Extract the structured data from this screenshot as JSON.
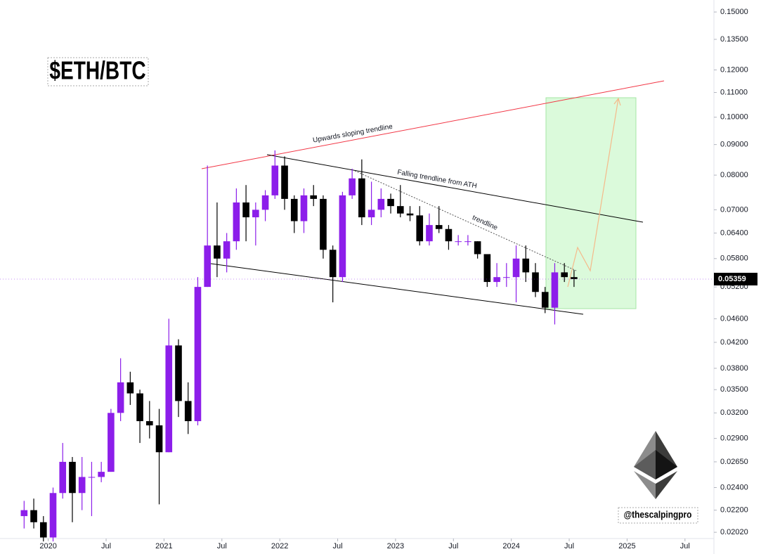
{
  "chart_data": {
    "type": "candlestick",
    "title": "$ETH/BTC",
    "watermark": "@thescalpingpro",
    "annotations": [
      "Upwards sloping trendline",
      "Falling trendline from ATH",
      "trendline"
    ],
    "up_color": "#8c1eea",
    "down_color": "#000000",
    "log_scale": true,
    "last_price": 0.05359,
    "x": [
      "2019-10",
      "2019-11",
      "2019-12",
      "2020-01",
      "2020-02",
      "2020-03",
      "2020-04",
      "2020-05",
      "2020-06",
      "2020-07",
      "2020-08",
      "2020-09",
      "2020-10",
      "2020-11",
      "2020-12",
      "2021-01",
      "2021-02",
      "2021-03",
      "2021-04",
      "2021-05",
      "2021-06",
      "2021-07",
      "2021-08",
      "2021-09",
      "2021-10",
      "2021-11",
      "2021-12",
      "2022-01",
      "2022-02",
      "2022-03",
      "2022-04",
      "2022-05",
      "2022-06",
      "2022-07",
      "2022-08",
      "2022-09",
      "2022-10",
      "2022-11",
      "2022-12",
      "2023-01",
      "2023-02",
      "2023-03",
      "2023-04",
      "2023-05",
      "2023-06",
      "2023-07",
      "2023-08",
      "2023-09",
      "2023-10",
      "2023-11",
      "2023-12",
      "2024-01",
      "2024-02",
      "2024-03",
      "2024-04",
      "2024-05",
      "2024-06",
      "2024-07"
    ],
    "open": [
      0.0215,
      0.022,
      0.021,
      0.0198,
      0.0235,
      0.0265,
      0.0235,
      0.025,
      0.025,
      0.0255,
      0.032,
      0.036,
      0.0345,
      0.031,
      0.0305,
      0.0275,
      0.0415,
      0.0335,
      0.031,
      0.052,
      0.061,
      0.058,
      0.062,
      0.072,
      0.068,
      0.07,
      0.074,
      0.083,
      0.073,
      0.067,
      0.074,
      0.073,
      0.06,
      0.054,
      0.074,
      0.079,
      0.068,
      0.07,
      0.073,
      0.071,
      0.069,
      0.0685,
      0.062,
      0.066,
      0.065,
      0.062,
      0.062,
      0.062,
      0.059,
      0.053,
      0.054,
      0.054,
      0.058,
      0.055,
      0.051,
      0.048,
      0.055,
      0.054
    ],
    "high": [
      0.0228,
      0.023,
      0.0215,
      0.024,
      0.0285,
      0.027,
      0.027,
      0.0265,
      0.0265,
      0.0325,
      0.0395,
      0.0375,
      0.035,
      0.0335,
      0.0325,
      0.046,
      0.0425,
      0.036,
      0.054,
      0.083,
      0.072,
      0.064,
      0.076,
      0.077,
      0.072,
      0.0755,
      0.088,
      0.086,
      0.074,
      0.076,
      0.077,
      0.074,
      0.061,
      0.075,
      0.082,
      0.085,
      0.078,
      0.076,
      0.0745,
      0.077,
      0.071,
      0.071,
      0.069,
      0.071,
      0.066,
      0.0635,
      0.0635,
      0.062,
      0.059,
      0.057,
      0.057,
      0.061,
      0.061,
      0.057,
      0.052,
      0.057,
      0.057,
      0.0555
    ],
    "low": [
      0.0205,
      0.0205,
      0.0195,
      0.0195,
      0.023,
      0.021,
      0.022,
      0.0215,
      0.0245,
      0.0255,
      0.031,
      0.033,
      0.0285,
      0.029,
      0.0225,
      0.0275,
      0.0315,
      0.0295,
      0.0305,
      0.052,
      0.054,
      0.055,
      0.06,
      0.062,
      0.061,
      0.067,
      0.073,
      0.07,
      0.064,
      0.064,
      0.071,
      0.058,
      0.049,
      0.053,
      0.073,
      0.066,
      0.066,
      0.068,
      0.069,
      0.068,
      0.067,
      0.061,
      0.061,
      0.064,
      0.06,
      0.061,
      0.061,
      0.058,
      0.052,
      0.052,
      0.052,
      0.049,
      0.053,
      0.05,
      0.047,
      0.045,
      0.053,
      0.052
    ],
    "close": [
      0.022,
      0.021,
      0.0198,
      0.0235,
      0.0265,
      0.0235,
      0.025,
      0.025,
      0.0255,
      0.032,
      0.036,
      0.0345,
      0.031,
      0.0305,
      0.0275,
      0.0415,
      0.0335,
      0.031,
      0.052,
      0.061,
      0.058,
      0.062,
      0.072,
      0.068,
      0.07,
      0.074,
      0.083,
      0.073,
      0.067,
      0.074,
      0.073,
      0.06,
      0.054,
      0.074,
      0.079,
      0.068,
      0.07,
      0.073,
      0.071,
      0.069,
      0.0685,
      0.062,
      0.066,
      0.065,
      0.062,
      0.062,
      0.062,
      0.059,
      0.053,
      0.054,
      0.054,
      0.058,
      0.055,
      0.051,
      0.048,
      0.055,
      0.054,
      0.0536
    ],
    "xlim": [
      "2019-08",
      "2025-10"
    ],
    "xticks": [
      {
        "value": "2020-01",
        "label": "2020"
      },
      {
        "value": "2020-07",
        "label": "Jul"
      },
      {
        "value": "2021-01",
        "label": "2021"
      },
      {
        "value": "2021-07",
        "label": "Jul"
      },
      {
        "value": "2022-01",
        "label": "2022"
      },
      {
        "value": "2022-07",
        "label": "Jul"
      },
      {
        "value": "2023-01",
        "label": "2023"
      },
      {
        "value": "2023-07",
        "label": "Jul"
      },
      {
        "value": "2024-01",
        "label": "2024"
      },
      {
        "value": "2024-07",
        "label": "Jul"
      },
      {
        "value": "2025-01",
        "label": "2025"
      },
      {
        "value": "2025-07",
        "label": "Jul"
      }
    ],
    "ylim": [
      0.01972,
      0.1571
    ],
    "yticks": [
      {
        "value": 0.15,
        "label": "0.15000"
      },
      {
        "value": 0.135,
        "label": "0.13500"
      },
      {
        "value": 0.12,
        "label": "0.12000"
      },
      {
        "value": 0.11,
        "label": "0.11000"
      },
      {
        "value": 0.1,
        "label": "0.10000"
      },
      {
        "value": 0.09,
        "label": "0.09000"
      },
      {
        "value": 0.08,
        "label": "0.08000"
      },
      {
        "value": 0.07,
        "label": "0.07000"
      },
      {
        "value": 0.064,
        "label": "0.06400"
      },
      {
        "value": 0.058,
        "label": "0.05800"
      },
      {
        "value": 0.052,
        "label": "0.05200"
      },
      {
        "value": 0.046,
        "label": "0.04600"
      },
      {
        "value": 0.042,
        "label": "0.04200"
      },
      {
        "value": 0.038,
        "label": "0.03800"
      },
      {
        "value": 0.035,
        "label": "0.03500"
      },
      {
        "value": 0.032,
        "label": "0.03200"
      },
      {
        "value": 0.029,
        "label": "0.02900"
      },
      {
        "value": 0.0265,
        "label": "0.02650"
      },
      {
        "value": 0.024,
        "label": "0.02400"
      },
      {
        "value": 0.022,
        "label": "0.02200"
      },
      {
        "value": 0.0202,
        "label": "0.02020"
      }
    ]
  }
}
